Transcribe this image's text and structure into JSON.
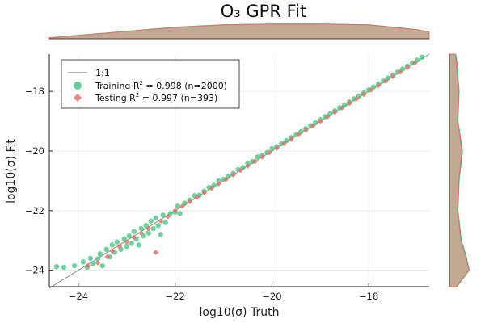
{
  "chart_data": {
    "type": "scatter",
    "title": "O₃ GPR Fit",
    "xlabel": "log10(σ) Truth",
    "ylabel": "log10(σ) Fit",
    "xlim": [
      -24.6,
      -16.75
    ],
    "ylim": [
      -24.55,
      -16.75
    ],
    "xticks": [
      -24,
      -22,
      -20,
      -18
    ],
    "yticks": [
      -24,
      -22,
      -20,
      -18
    ],
    "xtick_labels": [
      "−24",
      "−22",
      "−20",
      "−18"
    ],
    "ytick_labels": [
      "−24",
      "−22",
      "−20",
      "−18"
    ],
    "grid": true,
    "legend_position": "top-left",
    "reference_line": {
      "name": "1:1",
      "x": [
        -24.6,
        -16.75
      ],
      "y": [
        -24.6,
        -16.75
      ],
      "color": "#8c8c8c"
    },
    "series": [
      {
        "name": "Training",
        "legend_prefix": "Training R",
        "legend_suffix": " = 0.998 (n=2000)",
        "r2": 0.998,
        "n": 2000,
        "marker": "circle",
        "color": "#3cc47c",
        "points": [
          [
            -24.45,
            -23.88
          ],
          [
            -24.3,
            -23.9
          ],
          [
            -24.08,
            -23.85
          ],
          [
            -23.9,
            -23.72
          ],
          [
            -23.82,
            -23.9
          ],
          [
            -23.75,
            -23.6
          ],
          [
            -23.7,
            -23.78
          ],
          [
            -23.6,
            -23.62
          ],
          [
            -23.55,
            -23.45
          ],
          [
            -23.5,
            -23.85
          ],
          [
            -23.42,
            -23.3
          ],
          [
            -23.35,
            -23.55
          ],
          [
            -23.3,
            -23.15
          ],
          [
            -23.25,
            -23.4
          ],
          [
            -23.2,
            -23.05
          ],
          [
            -23.12,
            -23.3
          ],
          [
            -23.05,
            -22.95
          ],
          [
            -23.0,
            -23.2
          ],
          [
            -22.95,
            -22.85
          ],
          [
            -22.9,
            -23.1
          ],
          [
            -22.85,
            -22.7
          ],
          [
            -22.8,
            -22.95
          ],
          [
            -22.75,
            -23.15
          ],
          [
            -22.7,
            -22.6
          ],
          [
            -22.65,
            -22.85
          ],
          [
            -22.6,
            -22.5
          ],
          [
            -22.55,
            -22.75
          ],
          [
            -22.5,
            -22.35
          ],
          [
            -22.45,
            -22.6
          ],
          [
            -22.4,
            -22.25
          ],
          [
            -22.35,
            -22.5
          ],
          [
            -22.3,
            -22.8
          ],
          [
            -22.25,
            -22.15
          ],
          [
            -22.2,
            -22.4
          ],
          [
            -22.1,
            -22.1
          ],
          [
            -22.0,
            -22.05
          ],
          [
            -21.95,
            -21.85
          ],
          [
            -21.9,
            -22.1
          ],
          [
            -21.8,
            -21.75
          ],
          [
            -21.7,
            -21.65
          ],
          [
            -21.6,
            -21.5
          ],
          [
            -21.5,
            -21.48
          ],
          [
            -21.4,
            -21.35
          ],
          [
            -21.3,
            -21.22
          ],
          [
            -21.2,
            -21.15
          ],
          [
            -21.1,
            -21.0
          ],
          [
            -21.0,
            -20.95
          ],
          [
            -20.9,
            -20.85
          ],
          [
            -20.8,
            -20.75
          ],
          [
            -20.7,
            -20.62
          ],
          [
            -20.6,
            -20.55
          ],
          [
            -20.5,
            -20.42
          ],
          [
            -20.4,
            -20.35
          ],
          [
            -20.3,
            -20.2
          ],
          [
            -20.2,
            -20.15
          ],
          [
            -20.1,
            -20.05
          ],
          [
            -20.0,
            -19.92
          ],
          [
            -19.9,
            -19.85
          ],
          [
            -19.8,
            -19.75
          ],
          [
            -19.7,
            -19.65
          ],
          [
            -19.6,
            -19.55
          ],
          [
            -19.5,
            -19.45
          ],
          [
            -19.4,
            -19.35
          ],
          [
            -19.3,
            -19.25
          ],
          [
            -19.2,
            -19.15
          ],
          [
            -19.1,
            -19.05
          ],
          [
            -19.0,
            -18.95
          ],
          [
            -18.9,
            -18.85
          ],
          [
            -18.8,
            -18.75
          ],
          [
            -18.7,
            -18.65
          ],
          [
            -18.6,
            -18.55
          ],
          [
            -18.5,
            -18.45
          ],
          [
            -18.4,
            -18.35
          ],
          [
            -18.3,
            -18.25
          ],
          [
            -18.2,
            -18.15
          ],
          [
            -18.1,
            -18.05
          ],
          [
            -18.0,
            -17.95
          ],
          [
            -17.9,
            -17.85
          ],
          [
            -17.8,
            -17.75
          ],
          [
            -17.7,
            -17.65
          ],
          [
            -17.6,
            -17.55
          ],
          [
            -17.5,
            -17.45
          ],
          [
            -17.4,
            -17.35
          ],
          [
            -17.3,
            -17.25
          ],
          [
            -17.2,
            -17.15
          ],
          [
            -17.1,
            -17.05
          ],
          [
            -17.0,
            -16.95
          ],
          [
            -16.9,
            -16.85
          ]
        ]
      },
      {
        "name": "Testing",
        "legend_prefix": "Testing   R",
        "legend_suffix": " = 0.997 (n=393)",
        "r2": 0.997,
        "n": 393,
        "marker": "diamond",
        "color": "#e8716c",
        "points": [
          [
            -23.8,
            -23.85
          ],
          [
            -23.6,
            -23.75
          ],
          [
            -23.4,
            -23.55
          ],
          [
            -23.3,
            -23.35
          ],
          [
            -23.15,
            -23.2
          ],
          [
            -23.0,
            -23.05
          ],
          [
            -22.85,
            -22.9
          ],
          [
            -22.7,
            -22.75
          ],
          [
            -22.55,
            -22.6
          ],
          [
            -22.4,
            -23.4
          ],
          [
            -22.3,
            -22.35
          ],
          [
            -22.15,
            -22.2
          ],
          [
            -22.0,
            -22.0
          ],
          [
            -21.85,
            -21.85
          ],
          [
            -21.7,
            -21.7
          ],
          [
            -21.55,
            -21.55
          ],
          [
            -21.4,
            -21.4
          ],
          [
            -21.25,
            -21.25
          ],
          [
            -21.1,
            -21.1
          ],
          [
            -20.95,
            -20.95
          ],
          [
            -20.8,
            -20.8
          ],
          [
            -20.65,
            -20.65
          ],
          [
            -20.5,
            -20.5
          ],
          [
            -20.35,
            -20.35
          ],
          [
            -20.2,
            -20.2
          ],
          [
            -20.05,
            -20.05
          ],
          [
            -19.9,
            -19.9
          ],
          [
            -19.75,
            -19.75
          ],
          [
            -19.6,
            -19.6
          ],
          [
            -19.45,
            -19.45
          ],
          [
            -19.3,
            -19.3
          ],
          [
            -19.15,
            -19.15
          ],
          [
            -19.0,
            -19.0
          ],
          [
            -18.85,
            -18.85
          ],
          [
            -18.7,
            -18.7
          ],
          [
            -18.55,
            -18.55
          ],
          [
            -18.4,
            -18.4
          ],
          [
            -18.25,
            -18.25
          ],
          [
            -18.1,
            -18.1
          ],
          [
            -17.95,
            -17.95
          ],
          [
            -17.8,
            -17.8
          ],
          [
            -17.65,
            -17.65
          ],
          [
            -17.5,
            -17.5
          ],
          [
            -17.35,
            -17.35
          ],
          [
            -17.2,
            -17.2
          ],
          [
            -17.05,
            -17.05
          ]
        ]
      }
    ],
    "marginal_density": {
      "top": {
        "grid": [
          -24.6,
          -24.0,
          -23.0,
          -22.0,
          -21.0,
          -20.0,
          -19.0,
          -18.0,
          -17.0,
          -16.75
        ],
        "density": [
          0.05,
          0.2,
          0.45,
          0.7,
          0.85,
          0.9,
          0.9,
          0.85,
          0.55,
          0.4
        ]
      },
      "right": {
        "grid": [
          -24.55,
          -24.0,
          -23.5,
          -23.0,
          -22.0,
          -21.0,
          -20.0,
          -19.0,
          -18.0,
          -17.0,
          -16.75
        ],
        "density": [
          0.3,
          0.85,
          0.7,
          0.5,
          0.35,
          0.4,
          0.55,
          0.35,
          0.4,
          0.3,
          0.25
        ]
      }
    }
  }
}
